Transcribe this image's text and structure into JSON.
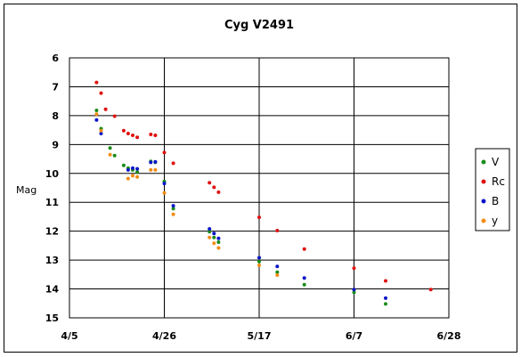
{
  "chart_data": {
    "type": "scatter",
    "title": "Cyg V2491",
    "xlabel": "",
    "ylabel": "Mag",
    "x_tick_labels": [
      "4/5",
      "4/26",
      "5/17",
      "6/7",
      "6/28"
    ],
    "x_ticks": [
      "2008-04-05",
      "2008-04-26",
      "2008-05-17",
      "2008-06-07",
      "2008-06-28"
    ],
    "xlim": [
      "2008-04-05",
      "2008-06-28"
    ],
    "y_tick_labels": [
      "6",
      "7",
      "8",
      "9",
      "10",
      "11",
      "12",
      "13",
      "14",
      "15"
    ],
    "ylim": [
      6,
      15
    ],
    "y_inverted": true,
    "grid": "on",
    "legend_position": "right",
    "series": [
      {
        "name": "V",
        "color": "#1a8c1a",
        "points": [
          {
            "x": "2008-04-11",
            "y": 7.82
          },
          {
            "x": "2008-04-12",
            "y": 8.45
          },
          {
            "x": "2008-04-14",
            "y": 9.12
          },
          {
            "x": "2008-04-15",
            "y": 9.38
          },
          {
            "x": "2008-04-17",
            "y": 9.72
          },
          {
            "x": "2008-04-18",
            "y": 9.82
          },
          {
            "x": "2008-04-19",
            "y": 9.88
          },
          {
            "x": "2008-04-20",
            "y": 9.95
          },
          {
            "x": "2008-04-23",
            "y": 9.58
          },
          {
            "x": "2008-04-24",
            "y": 9.62
          },
          {
            "x": "2008-04-26",
            "y": 10.28
          },
          {
            "x": "2008-04-28",
            "y": 11.22
          },
          {
            "x": "2008-05-06",
            "y": 12.02
          },
          {
            "x": "2008-05-07",
            "y": 12.22
          },
          {
            "x": "2008-05-08",
            "y": 12.38
          },
          {
            "x": "2008-05-17",
            "y": 13.05
          },
          {
            "x": "2008-05-21",
            "y": 13.42
          },
          {
            "x": "2008-05-27",
            "y": 13.85
          },
          {
            "x": "2008-06-07",
            "y": 14.12
          },
          {
            "x": "2008-06-14",
            "y": 14.52
          }
        ]
      },
      {
        "name": "Rc",
        "color": "#e01010",
        "points": [
          {
            "x": "2008-04-11",
            "y": 6.85
          },
          {
            "x": "2008-04-12",
            "y": 7.22
          },
          {
            "x": "2008-04-13",
            "y": 7.78
          },
          {
            "x": "2008-04-15",
            "y": 8.02
          },
          {
            "x": "2008-04-17",
            "y": 8.52
          },
          {
            "x": "2008-04-18",
            "y": 8.62
          },
          {
            "x": "2008-04-19",
            "y": 8.68
          },
          {
            "x": "2008-04-20",
            "y": 8.75
          },
          {
            "x": "2008-04-23",
            "y": 8.65
          },
          {
            "x": "2008-04-24",
            "y": 8.68
          },
          {
            "x": "2008-04-26",
            "y": 9.28
          },
          {
            "x": "2008-04-28",
            "y": 9.65
          },
          {
            "x": "2008-05-06",
            "y": 10.32
          },
          {
            "x": "2008-05-07",
            "y": 10.48
          },
          {
            "x": "2008-05-08",
            "y": 10.65
          },
          {
            "x": "2008-05-17",
            "y": 11.52
          },
          {
            "x": "2008-05-21",
            "y": 11.98
          },
          {
            "x": "2008-05-27",
            "y": 12.62
          },
          {
            "x": "2008-06-07",
            "y": 13.28
          },
          {
            "x": "2008-06-14",
            "y": 13.72
          },
          {
            "x": "2008-06-24",
            "y": 14.02
          }
        ]
      },
      {
        "name": "B",
        "color": "#0a14c8",
        "points": [
          {
            "x": "2008-04-11",
            "y": 8.15
          },
          {
            "x": "2008-04-12",
            "y": 8.62
          },
          {
            "x": "2008-04-18",
            "y": 9.88
          },
          {
            "x": "2008-04-19",
            "y": 9.82
          },
          {
            "x": "2008-04-20",
            "y": 9.84
          },
          {
            "x": "2008-04-23",
            "y": 9.62
          },
          {
            "x": "2008-04-24",
            "y": 9.6
          },
          {
            "x": "2008-04-26",
            "y": 10.35
          },
          {
            "x": "2008-04-28",
            "y": 11.12
          },
          {
            "x": "2008-05-06",
            "y": 11.92
          },
          {
            "x": "2008-05-07",
            "y": 12.08
          },
          {
            "x": "2008-05-08",
            "y": 12.25
          },
          {
            "x": "2008-05-17",
            "y": 12.92
          },
          {
            "x": "2008-05-21",
            "y": 13.22
          },
          {
            "x": "2008-05-27",
            "y": 13.62
          },
          {
            "x": "2008-06-07",
            "y": 14.02
          },
          {
            "x": "2008-06-14",
            "y": 14.32
          }
        ]
      },
      {
        "name": "y",
        "color": "#f08c14",
        "points": [
          {
            "x": "2008-04-11",
            "y": 7.95
          },
          {
            "x": "2008-04-12",
            "y": 8.52
          },
          {
            "x": "2008-04-14",
            "y": 9.35
          },
          {
            "x": "2008-04-18",
            "y": 10.18
          },
          {
            "x": "2008-04-19",
            "y": 10.08
          },
          {
            "x": "2008-04-20",
            "y": 10.12
          },
          {
            "x": "2008-04-23",
            "y": 9.88
          },
          {
            "x": "2008-04-24",
            "y": 9.88
          },
          {
            "x": "2008-04-26",
            "y": 10.68
          },
          {
            "x": "2008-04-28",
            "y": 11.42
          },
          {
            "x": "2008-05-06",
            "y": 12.22
          },
          {
            "x": "2008-05-07",
            "y": 12.42
          },
          {
            "x": "2008-05-08",
            "y": 12.58
          },
          {
            "x": "2008-05-17",
            "y": 13.18
          },
          {
            "x": "2008-05-21",
            "y": 13.52
          }
        ]
      }
    ]
  }
}
